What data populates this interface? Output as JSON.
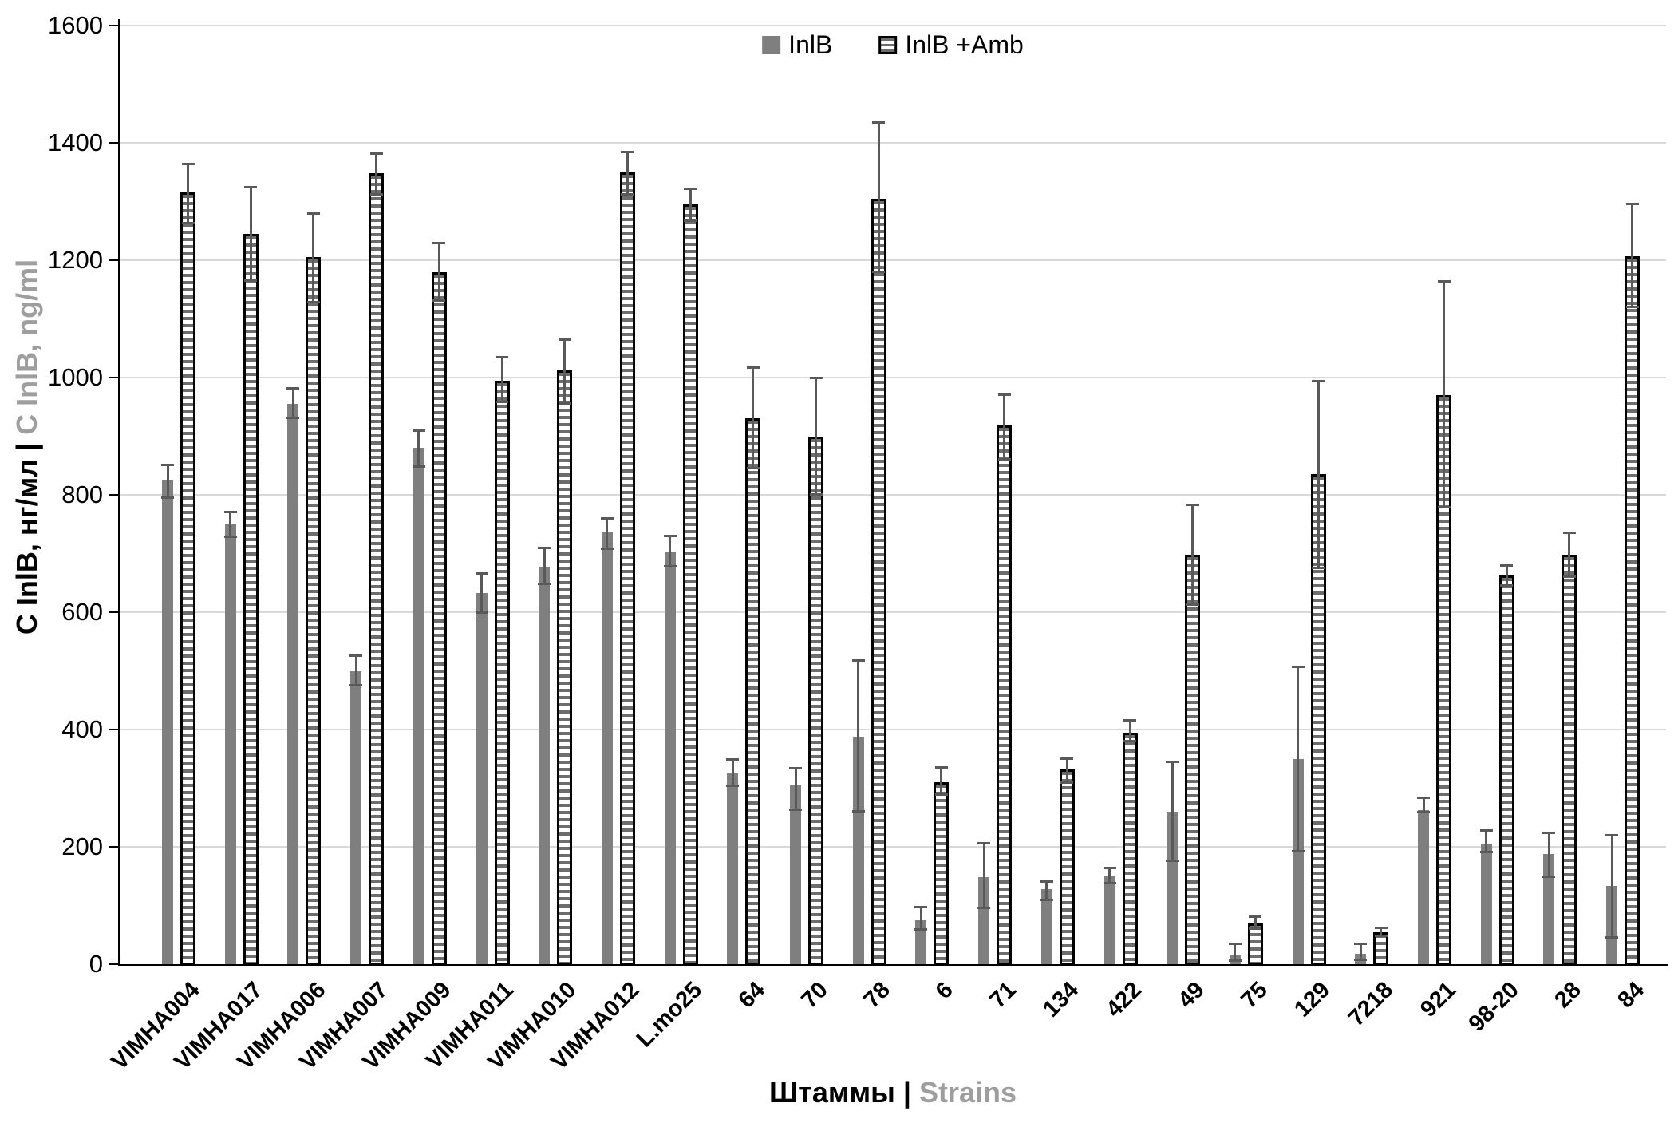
{
  "chart_data": {
    "type": "bar",
    "title": "",
    "xlabel": {
      "primary": "Штаммы",
      "separator": " | ",
      "secondary": "Strains"
    },
    "ylabel": {
      "primary": "С InlB, нг/мл",
      "separator": " | ",
      "secondary": "C InlB, ng/ml"
    },
    "ylim": [
      0,
      1600
    ],
    "yticks": [
      0,
      200,
      400,
      600,
      800,
      1000,
      1200,
      1400,
      1600
    ],
    "grid": true,
    "legend_position": "top-center",
    "categories": [
      "VIMHA004",
      "VIMHA017",
      "VIMHA006",
      "VIMHA007",
      "VIMHA009",
      "VIMHA011",
      "VIMHA010",
      "VIMHA012",
      "L.mo25",
      "64",
      "70",
      "78",
      "6",
      "71",
      "134",
      "422",
      "49",
      "75",
      "129",
      "7218",
      "921",
      "98-20",
      "28",
      "84"
    ],
    "series": [
      {
        "name": "InlB",
        "style": "solid",
        "values": [
          825,
          750,
          955,
          500,
          880,
          632,
          678,
          736,
          703,
          325,
          305,
          388,
          75,
          148,
          128,
          150,
          260,
          15,
          350,
          18,
          262,
          205,
          188,
          133
        ],
        "err_low": [
          795,
          728,
          930,
          475,
          848,
          598,
          648,
          708,
          678,
          303,
          262,
          260,
          58,
          95,
          109,
          137,
          175,
          5,
          192,
          7,
          258,
          190,
          148,
          45
        ],
        "err_high": [
          852,
          772,
          982,
          527,
          910,
          666,
          710,
          760,
          730,
          350,
          335,
          518,
          98,
          207,
          142,
          164,
          345,
          35,
          508,
          35,
          284,
          228,
          224,
          220
        ]
      },
      {
        "name": "InlB +Amb",
        "style": "striped",
        "values": [
          1315,
          1245,
          1205,
          1348,
          1180,
          995,
          1012,
          1350,
          1295,
          930,
          900,
          1305,
          310,
          918,
          332,
          395,
          698,
          70,
          835,
          55,
          970,
          662,
          698,
          1207
        ],
        "err_low": [
          1262,
          1165,
          1128,
          1312,
          1130,
          958,
          955,
          1312,
          1266,
          845,
          800,
          1180,
          288,
          860,
          309,
          379,
          612,
          60,
          675,
          48,
          778,
          645,
          660,
          1120
        ],
        "err_high": [
          1365,
          1325,
          1280,
          1382,
          1230,
          1035,
          1065,
          1385,
          1322,
          1018,
          1000,
          1435,
          336,
          972,
          351,
          416,
          783,
          82,
          995,
          62,
          1164,
          680,
          736,
          1297
        ]
      }
    ]
  },
  "legend": {
    "items": [
      {
        "label": "InlB"
      },
      {
        "label": "InlB +Amb"
      }
    ]
  },
  "colors": {
    "solid_bar": "#7f7f7f",
    "stripe": "#6d6d6d",
    "stripe_background": "#ffffff",
    "bar_border": "#000000",
    "error_bar": "#595959",
    "gridline": "#d9d9d9",
    "axis": "#000000",
    "text": "#000000",
    "text_secondary": "#9e9e9e"
  }
}
